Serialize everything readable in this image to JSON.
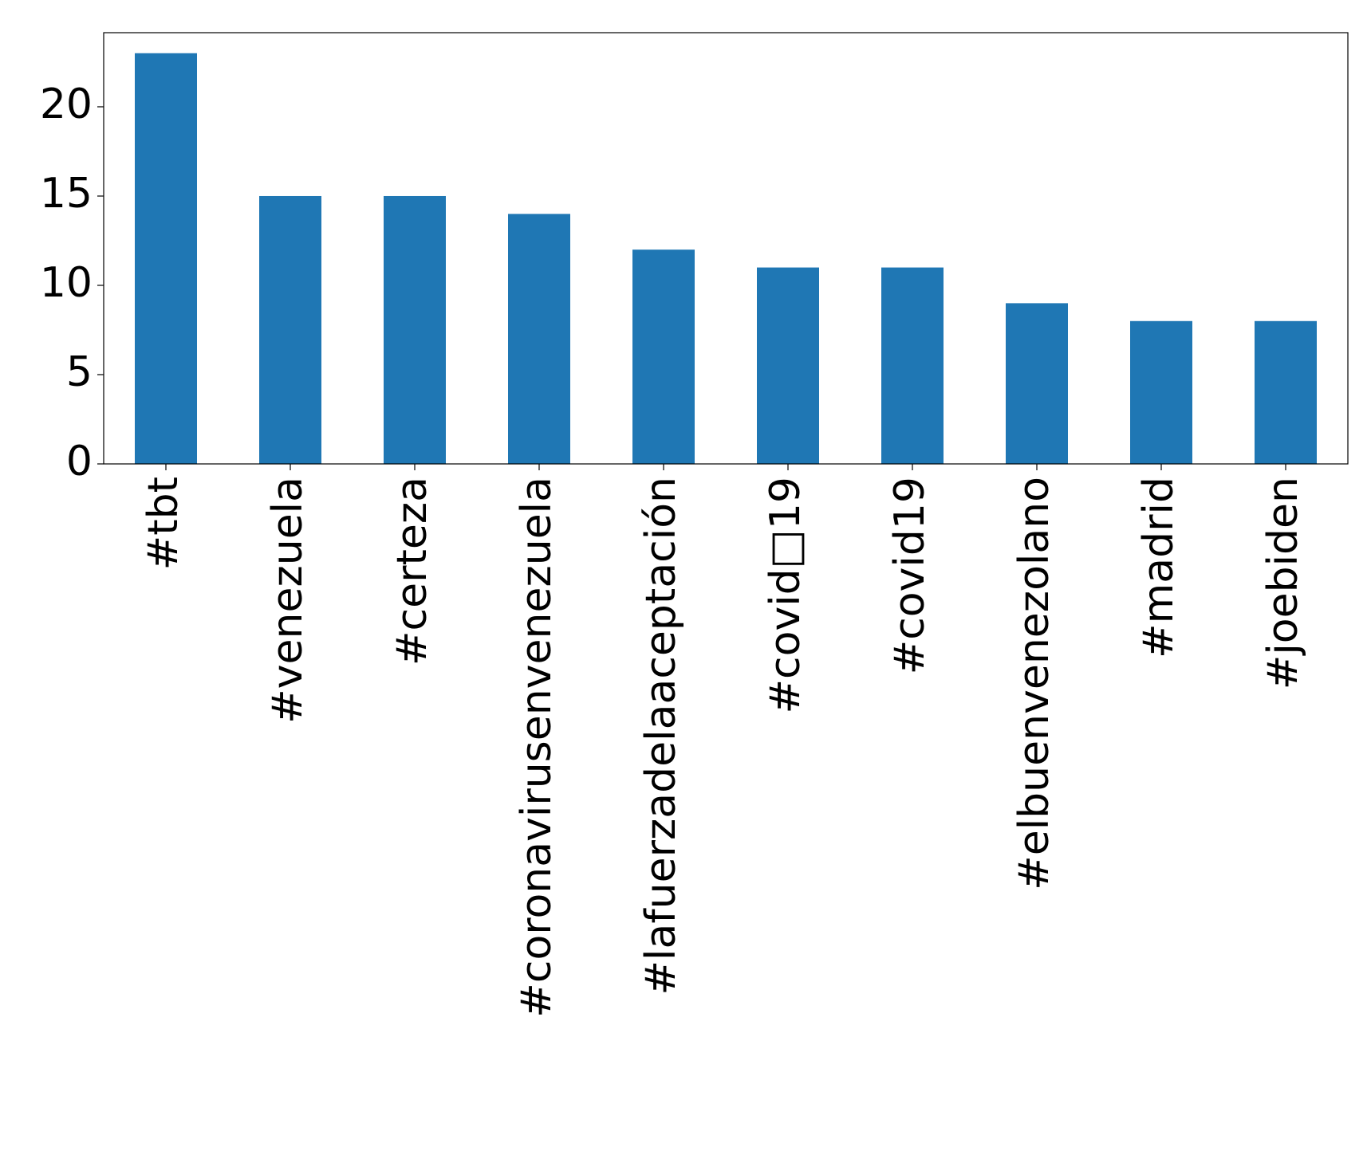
{
  "chart_data": {
    "type": "bar",
    "title": "",
    "xlabel": "",
    "ylabel": "",
    "categories": [
      "#tbt",
      "#venezuela",
      "#certeza",
      "#coronavirusenvenezuela",
      "#lafuerzadelaaceptación",
      "#covid□19",
      "#covid19",
      "#elbuenvenezolano",
      "#madrid",
      "#joebiden"
    ],
    "values": [
      23,
      15,
      15,
      14,
      12,
      11,
      11,
      9,
      8,
      8
    ],
    "ylim": [
      0,
      24.15
    ],
    "yticks": [
      0,
      5,
      10,
      15,
      20
    ],
    "grid": false,
    "legend": "none",
    "bar_color": "#1f77b4"
  }
}
